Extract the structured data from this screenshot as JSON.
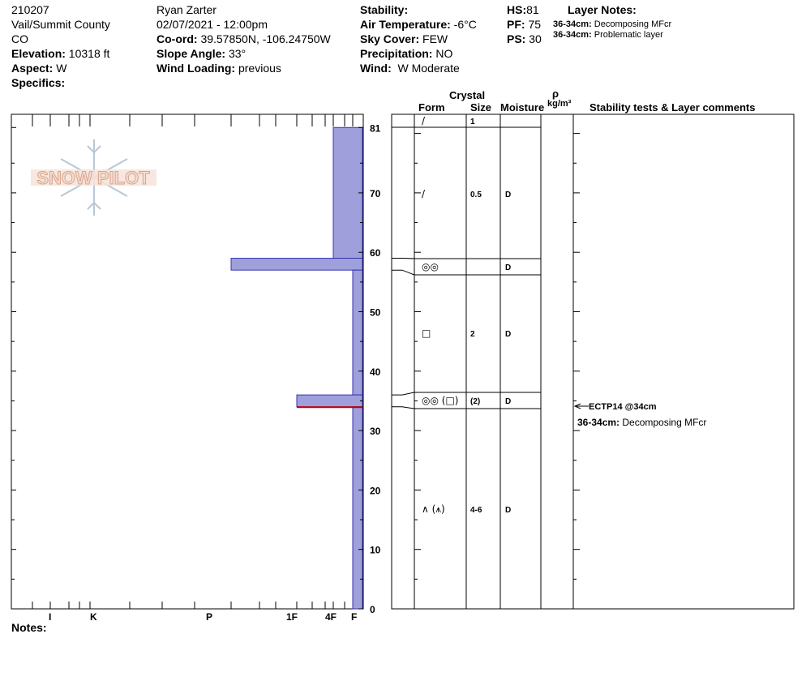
{
  "header": {
    "pit_id": "210207",
    "location": "Vail/Summit County",
    "state": "CO",
    "elevation_label": "Elevation:",
    "elevation_value": "10318 ft",
    "aspect_label": "Aspect:",
    "aspect_value": "W",
    "specifics_label": "Specifics:",
    "observer": "Ryan Zarter",
    "datetime": "02/07/2021 - 12:00pm",
    "coord_label": "Co-ord:",
    "coord_value": "39.57850N, -106.24750W",
    "slope_label": "Slope Angle:",
    "slope_value": "33°",
    "wind_loading_label": "Wind Loading:",
    "wind_loading_value": "previous",
    "stability_label": "Stability:",
    "air_temp_label": "Air Temperature:",
    "air_temp_value": "-6°C",
    "sky_label": "Sky Cover:",
    "sky_value": "FEW",
    "precip_label": "Precipitation:",
    "precip_value": "NO",
    "wind_label": "Wind:",
    "wind_value": "W Moderate",
    "hs_label": "HS:",
    "hs_value": "81",
    "pf_label": "PF:",
    "pf_value": "75",
    "ps_label": "PS:",
    "ps_value": "30",
    "layer_notes_title": "Layer Notes:",
    "layer_notes": [
      {
        "range": "36-34cm:",
        "text": "Decomposing MFcr"
      },
      {
        "range": "36-34cm:",
        "text": "Problematic layer"
      }
    ]
  },
  "logo_text": "SNOW PILOT",
  "columns": {
    "crystal": "Crystal",
    "form": "Form",
    "size": "Size",
    "moisture": "Moisture",
    "rho": "ρ",
    "density_unit": "kg/m³",
    "stability": "Stability tests & Layer comments"
  },
  "notes_label": "Notes:",
  "stability_test": {
    "label": "ECTP14 @34cm",
    "depth": 34
  },
  "stability_comment": {
    "range": "36-34cm:",
    "text": "Decomposing MFcr"
  },
  "colors": {
    "layer_fill": "#9f9fdb",
    "layer_stroke": "#3535b0",
    "problem_line": "#c00000",
    "logo_flake": "#b8c7d6"
  },
  "chart_data": {
    "type": "bar",
    "title": "",
    "ylabel": "",
    "ylim": [
      0,
      81
    ],
    "y_ticks": [
      0,
      10,
      20,
      30,
      40,
      50,
      60,
      70,
      81
    ],
    "hardness_scale": [
      "I",
      "K",
      "P",
      "1F",
      "4F",
      "F"
    ],
    "layers": [
      {
        "top": 81,
        "bottom": 59,
        "hardness": "4F",
        "form": "/",
        "size": "1",
        "moisture": ""
      },
      {
        "top": 59,
        "bottom": 57,
        "hardness": "P",
        "form": "◎◎",
        "size": "",
        "moisture": "D"
      },
      {
        "top": 57,
        "bottom": 36,
        "hardness": "F",
        "form": "□",
        "size": "2",
        "moisture": "D"
      },
      {
        "top": 36,
        "bottom": 34,
        "hardness": "1F",
        "form": "◎◎ (□)",
        "size": "(2)",
        "moisture": "D"
      },
      {
        "top": 34,
        "bottom": 0,
        "hardness": "F",
        "form": "∧ (⩚)",
        "size": "4-6",
        "moisture": "D"
      }
    ],
    "extra_labels": [
      {
        "depth": 70,
        "form": "/",
        "size": "0.5",
        "moisture": "D"
      }
    ],
    "problem_layer_depth": 34
  }
}
